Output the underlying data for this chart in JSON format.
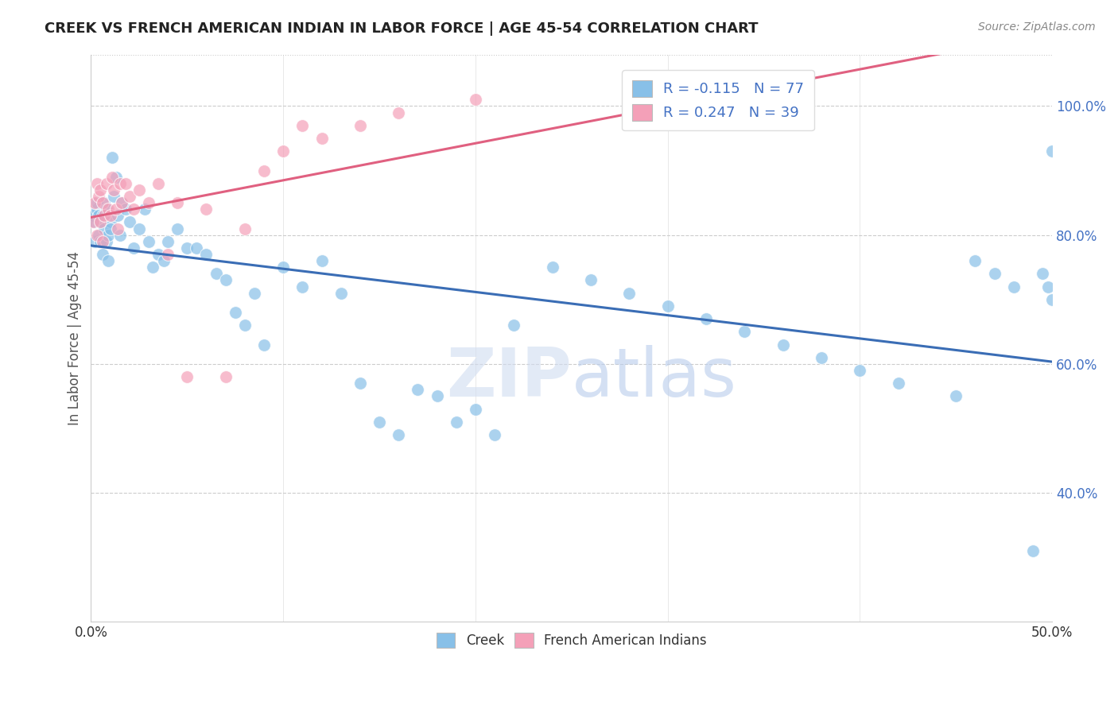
{
  "title": "CREEK VS FRENCH AMERICAN INDIAN IN LABOR FORCE | AGE 45-54 CORRELATION CHART",
  "source": "Source: ZipAtlas.com",
  "ylabel": "In Labor Force | Age 45-54",
  "xlim": [
    0.0,
    0.5
  ],
  "ylim": [
    0.2,
    1.08
  ],
  "xtick_left_label": "0.0%",
  "xtick_right_label": "50.0%",
  "yticks_right": [
    0.4,
    0.6,
    0.8,
    1.0
  ],
  "yticklabels_right": [
    "40.0%",
    "60.0%",
    "80.0%",
    "100.0%"
  ],
  "creek_R": -0.115,
  "creek_N": 77,
  "french_R": 0.247,
  "french_N": 39,
  "creek_color": "#88C0E8",
  "french_color": "#F4A0B8",
  "creek_line_color": "#3A6DB5",
  "french_line_color": "#E06080",
  "watermark_zip": "ZIP",
  "watermark_atlas": "atlas",
  "background_color": "#ffffff",
  "grid_color": "#CCCCCC",
  "creek_x": [
    0.001,
    0.002,
    0.002,
    0.003,
    0.003,
    0.004,
    0.004,
    0.005,
    0.005,
    0.006,
    0.006,
    0.007,
    0.007,
    0.008,
    0.008,
    0.009,
    0.009,
    0.01,
    0.01,
    0.011,
    0.012,
    0.013,
    0.014,
    0.015,
    0.016,
    0.018,
    0.02,
    0.022,
    0.025,
    0.028,
    0.03,
    0.032,
    0.035,
    0.038,
    0.04,
    0.045,
    0.05,
    0.055,
    0.06,
    0.065,
    0.07,
    0.075,
    0.08,
    0.085,
    0.09,
    0.1,
    0.11,
    0.12,
    0.13,
    0.14,
    0.15,
    0.16,
    0.17,
    0.18,
    0.19,
    0.2,
    0.21,
    0.22,
    0.24,
    0.26,
    0.28,
    0.3,
    0.32,
    0.34,
    0.36,
    0.38,
    0.4,
    0.42,
    0.45,
    0.46,
    0.47,
    0.48,
    0.49,
    0.495,
    0.498,
    0.5,
    0.5
  ],
  "creek_y": [
    0.83,
    0.82,
    0.79,
    0.84,
    0.85,
    0.8,
    0.83,
    0.82,
    0.79,
    0.83,
    0.77,
    0.81,
    0.85,
    0.79,
    0.84,
    0.8,
    0.76,
    0.82,
    0.81,
    0.92,
    0.86,
    0.89,
    0.83,
    0.8,
    0.85,
    0.84,
    0.82,
    0.78,
    0.81,
    0.84,
    0.79,
    0.75,
    0.77,
    0.76,
    0.79,
    0.81,
    0.78,
    0.78,
    0.77,
    0.74,
    0.73,
    0.68,
    0.66,
    0.71,
    0.63,
    0.75,
    0.72,
    0.76,
    0.71,
    0.57,
    0.51,
    0.49,
    0.56,
    0.55,
    0.51,
    0.53,
    0.49,
    0.66,
    0.75,
    0.73,
    0.71,
    0.69,
    0.67,
    0.65,
    0.63,
    0.61,
    0.59,
    0.57,
    0.55,
    0.76,
    0.74,
    0.72,
    0.31,
    0.74,
    0.72,
    0.93,
    0.7
  ],
  "french_x": [
    0.001,
    0.002,
    0.003,
    0.003,
    0.004,
    0.005,
    0.005,
    0.006,
    0.006,
    0.007,
    0.008,
    0.009,
    0.01,
    0.011,
    0.012,
    0.013,
    0.014,
    0.015,
    0.016,
    0.018,
    0.02,
    0.022,
    0.025,
    0.03,
    0.035,
    0.04,
    0.045,
    0.05,
    0.06,
    0.07,
    0.08,
    0.09,
    0.1,
    0.11,
    0.12,
    0.14,
    0.16,
    0.2,
    0.35
  ],
  "french_y": [
    0.82,
    0.85,
    0.88,
    0.8,
    0.86,
    0.87,
    0.82,
    0.85,
    0.79,
    0.83,
    0.88,
    0.84,
    0.83,
    0.89,
    0.87,
    0.84,
    0.81,
    0.88,
    0.85,
    0.88,
    0.86,
    0.84,
    0.87,
    0.85,
    0.88,
    0.77,
    0.85,
    0.58,
    0.84,
    0.58,
    0.81,
    0.9,
    0.93,
    0.97,
    0.95,
    0.97,
    0.99,
    1.01,
    0.98
  ]
}
